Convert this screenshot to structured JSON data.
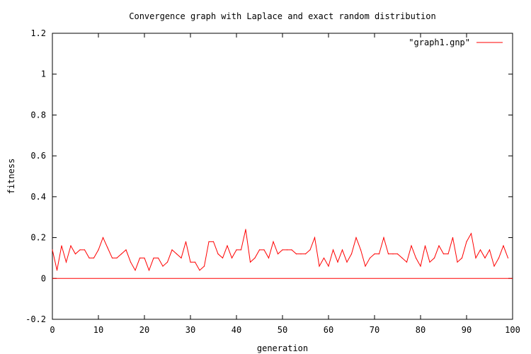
{
  "chart_data": {
    "type": "line",
    "title": "Convergence graph with Laplace and exact random distribution",
    "xlabel": "generation",
    "ylabel": "fitness",
    "xlim": [
      0,
      100
    ],
    "ylim": [
      -0.2,
      1.2
    ],
    "x_ticks": [
      0,
      10,
      20,
      30,
      40,
      50,
      60,
      70,
      80,
      90,
      100
    ],
    "y_ticks": [
      -0.2,
      0,
      0.2,
      0.4,
      0.6,
      0.8,
      1,
      1.2
    ],
    "x_tick_labels": [
      "0",
      "10",
      "20",
      "30",
      "40",
      "50",
      "60",
      "70",
      "80",
      "90",
      "100"
    ],
    "y_tick_labels": [
      "-0.2",
      "0",
      "0.2",
      "0.4",
      "0.6",
      "0.8",
      "1",
      "1.2"
    ],
    "grid": false,
    "legend_position": "top-right",
    "series": [
      {
        "name": "\"graph1.gnp\"",
        "color": "#ff0000",
        "x": [
          0,
          1,
          2,
          3,
          4,
          5,
          6,
          7,
          8,
          9,
          10,
          11,
          12,
          13,
          14,
          15,
          16,
          17,
          18,
          19,
          20,
          21,
          22,
          23,
          24,
          25,
          26,
          27,
          28,
          29,
          30,
          31,
          32,
          33,
          34,
          35,
          36,
          37,
          38,
          39,
          40,
          41,
          42,
          43,
          44,
          45,
          46,
          47,
          48,
          49,
          50,
          51,
          52,
          53,
          54,
          55,
          56,
          57,
          58,
          59,
          60,
          61,
          62,
          63,
          64,
          65,
          66,
          67,
          68,
          69,
          70,
          71,
          72,
          73,
          74,
          75,
          76,
          77,
          78,
          79,
          80,
          81,
          82,
          83,
          84,
          85,
          86,
          87,
          88,
          89,
          90,
          91,
          92,
          93,
          94,
          95,
          96,
          97,
          98,
          99
        ],
        "y": [
          0.14,
          0.04,
          0.16,
          0.08,
          0.16,
          0.12,
          0.14,
          0.14,
          0.1,
          0.1,
          0.14,
          0.2,
          0.15,
          0.1,
          0.1,
          0.12,
          0.14,
          0.08,
          0.04,
          0.1,
          0.1,
          0.04,
          0.1,
          0.1,
          0.06,
          0.08,
          0.14,
          0.12,
          0.1,
          0.18,
          0.08,
          0.08,
          0.04,
          0.06,
          0.18,
          0.18,
          0.12,
          0.1,
          0.16,
          0.1,
          0.14,
          0.14,
          0.24,
          0.08,
          0.1,
          0.14,
          0.14,
          0.1,
          0.18,
          0.12,
          0.14,
          0.14,
          0.14,
          0.12,
          0.12,
          0.12,
          0.14,
          0.2,
          0.06,
          0.1,
          0.06,
          0.14,
          0.08,
          0.14,
          0.08,
          0.12,
          0.2,
          0.14,
          0.06,
          0.1,
          0.12,
          0.12,
          0.2,
          0.12,
          0.12,
          0.12,
          0.1,
          0.08,
          0.16,
          0.1,
          0.06,
          0.16,
          0.08,
          0.1,
          0.16,
          0.12,
          0.12,
          0.2,
          0.08,
          0.1,
          0.18,
          0.22,
          0.1,
          0.14,
          0.1,
          0.14,
          0.06,
          0.1,
          0.16,
          0.1
        ]
      }
    ],
    "reference_lines": [
      {
        "type": "horizontal",
        "y": 0,
        "color": "#ff0000"
      }
    ]
  }
}
